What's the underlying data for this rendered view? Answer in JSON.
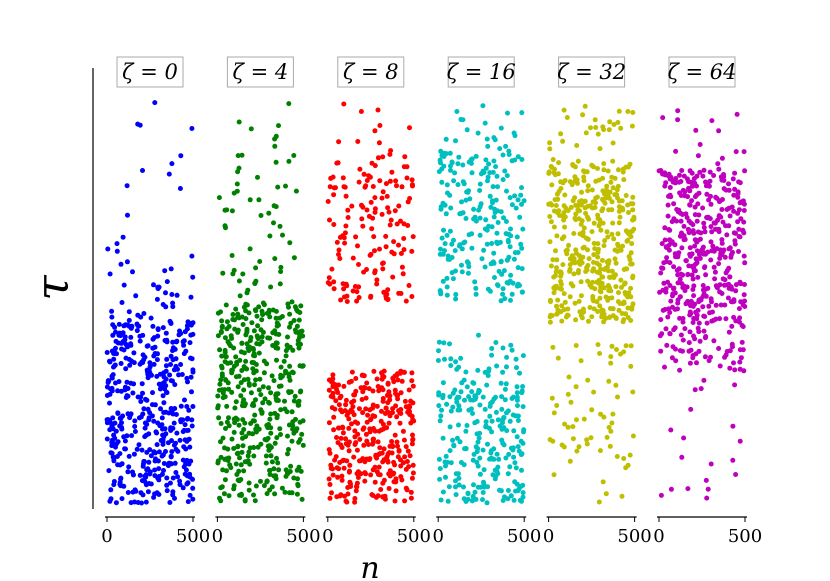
{
  "chart_data": {
    "type": "scatter",
    "xlabel": "n",
    "ylabel": "τ",
    "panels": [
      {
        "title": "ζ = 0",
        "color": "#0000ff",
        "xlim": [
          0,
          500
        ],
        "xticks": [
          "0",
          "500"
        ],
        "ylim": [
          0,
          1
        ],
        "points": 500,
        "density_bands": [
          [
            0.0,
            0.45,
            0.9
          ],
          [
            0.45,
            0.62,
            0.07
          ],
          [
            0.62,
            1.0,
            0.03
          ]
        ]
      },
      {
        "title": "ζ = 4",
        "color": "#008000",
        "xlim": [
          0,
          500
        ],
        "xticks": [
          "0",
          "500"
        ],
        "ylim": [
          0,
          1
        ],
        "points": 500,
        "density_bands": [
          [
            0.0,
            0.5,
            0.88
          ],
          [
            0.5,
            0.8,
            0.09
          ],
          [
            0.8,
            1.0,
            0.03
          ]
        ]
      },
      {
        "title": "ζ = 8",
        "color": "#ff0000",
        "xlim": [
          0,
          500
        ],
        "xticks": [
          "0",
          "500"
        ],
        "ylim": [
          0,
          1
        ],
        "points": 500,
        "density_bands": [
          [
            0.0,
            0.33,
            0.68
          ],
          [
            0.5,
            0.87,
            0.3
          ],
          [
            0.87,
            1.0,
            0.02
          ]
        ]
      },
      {
        "title": "ζ = 16",
        "color": "#00bfbf",
        "xlim": [
          0,
          500
        ],
        "xticks": [
          "0",
          "500"
        ],
        "ylim": [
          0,
          1
        ],
        "points": 500,
        "density_bands": [
          [
            0.0,
            0.3,
            0.45
          ],
          [
            0.3,
            0.42,
            0.07
          ],
          [
            0.5,
            0.88,
            0.44
          ],
          [
            0.88,
            1.0,
            0.04
          ]
        ]
      },
      {
        "title": "ζ = 32",
        "color": "#bfbf00",
        "xlim": [
          0,
          500
        ],
        "xticks": [
          "0",
          "500"
        ],
        "ylim": [
          0,
          1
        ],
        "points": 500,
        "density_bands": [
          [
            0.0,
            0.4,
            0.13
          ],
          [
            0.45,
            0.85,
            0.81
          ],
          [
            0.85,
            1.0,
            0.06
          ]
        ]
      },
      {
        "title": "ζ = 64",
        "color": "#bf00bf",
        "xlim": [
          0,
          500
        ],
        "xticks": [
          "0",
          "500"
        ],
        "ylim": [
          0,
          1
        ],
        "points": 500,
        "density_bands": [
          [
            0.0,
            0.33,
            0.04
          ],
          [
            0.33,
            0.45,
            0.13
          ],
          [
            0.45,
            0.83,
            0.8
          ],
          [
            0.83,
            1.0,
            0.03
          ]
        ]
      }
    ]
  }
}
